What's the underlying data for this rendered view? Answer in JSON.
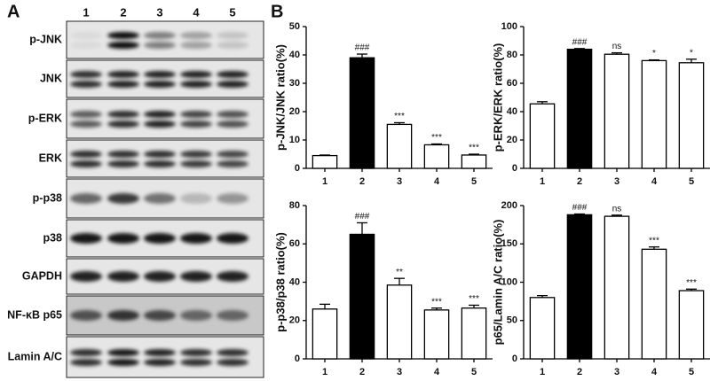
{
  "panels": {
    "a": "A",
    "b": "B"
  },
  "blot": {
    "lanes": [
      "1",
      "2",
      "3",
      "4",
      "5"
    ],
    "rows": [
      "p-JNK",
      "JNK",
      "p-ERK",
      "ERK",
      "p-p38",
      "p38",
      "GAPDH",
      "NF-κB p65",
      "Lamin A/C"
    ]
  },
  "chart_data": [
    {
      "type": "bar",
      "y_label": "p-JNK/JNK ratio(%)",
      "categories": [
        "1",
        "2",
        "3",
        "4",
        "5"
      ],
      "values": [
        4.5,
        39,
        15.5,
        8.3,
        4.7
      ],
      "errors": [
        0.2,
        1.3,
        0.6,
        0.3,
        0.3
      ],
      "annotations": [
        null,
        "###",
        "***",
        "***",
        "***"
      ],
      "colors": [
        "#ffffff",
        "#000000",
        "#ffffff",
        "#ffffff",
        "#ffffff"
      ],
      "ylim": [
        0,
        50
      ],
      "yticks": [
        0,
        10,
        20,
        30,
        40,
        50
      ]
    },
    {
      "type": "bar",
      "y_label": "p-ERK/ERK ratio(%)",
      "categories": [
        "1",
        "2",
        "3",
        "4",
        "5"
      ],
      "values": [
        45.5,
        84,
        80.5,
        76,
        74.5
      ],
      "errors": [
        1.5,
        0.5,
        1,
        0.5,
        2.5
      ],
      "annotations": [
        null,
        "###",
        "ns",
        "*",
        "*"
      ],
      "colors": [
        "#ffffff",
        "#000000",
        "#ffffff",
        "#ffffff",
        "#ffffff"
      ],
      "ylim": [
        0,
        100
      ],
      "yticks": [
        0,
        20,
        40,
        60,
        80,
        100
      ]
    },
    {
      "type": "bar",
      "y_label": "p-p38/p38 ratio(%)",
      "categories": [
        "1",
        "2",
        "3",
        "4",
        "5"
      ],
      "values": [
        26,
        65,
        38.5,
        25.5,
        26.5
      ],
      "errors": [
        2.5,
        6,
        3.5,
        1,
        1.5
      ],
      "annotations": [
        null,
        "###",
        "**",
        "***",
        "***"
      ],
      "colors": [
        "#ffffff",
        "#000000",
        "#ffffff",
        "#ffffff",
        "#ffffff"
      ],
      "ylim": [
        0,
        80
      ],
      "yticks": [
        0,
        20,
        40,
        60,
        80
      ]
    },
    {
      "type": "bar",
      "y_label": "p65/Lamin A/C ratio(%)",
      "categories": [
        "1",
        "2",
        "3",
        "4",
        "5"
      ],
      "values": [
        80,
        188,
        186,
        143,
        89
      ],
      "errors": [
        2.5,
        1,
        1.5,
        3,
        2
      ],
      "annotations": [
        null,
        "###",
        "ns",
        "***",
        "***"
      ],
      "colors": [
        "#ffffff",
        "#000000",
        "#ffffff",
        "#ffffff",
        "#ffffff"
      ],
      "ylim": [
        0,
        200
      ],
      "yticks": [
        0,
        50,
        100,
        150,
        200
      ]
    }
  ]
}
